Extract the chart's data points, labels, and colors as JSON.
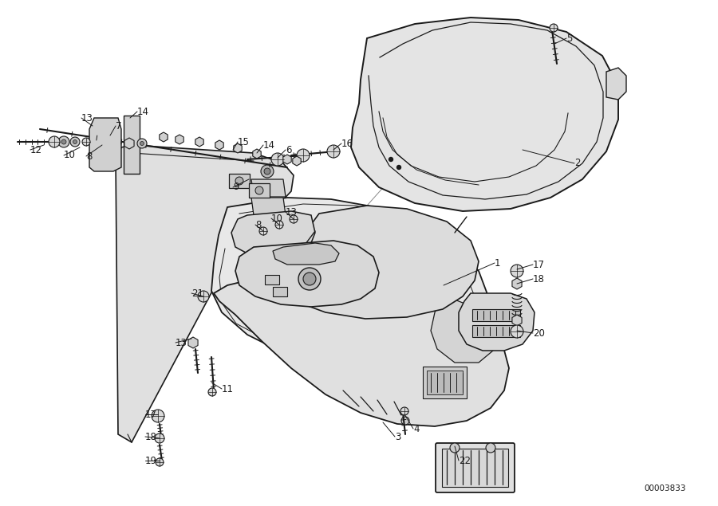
{
  "background": "#ffffff",
  "lc": "#1a1a1a",
  "tc": "#1a1a1a",
  "diagram_id": "00003833",
  "figsize": [
    9.0,
    6.35
  ],
  "dpi": 100,
  "fs": 8.5
}
